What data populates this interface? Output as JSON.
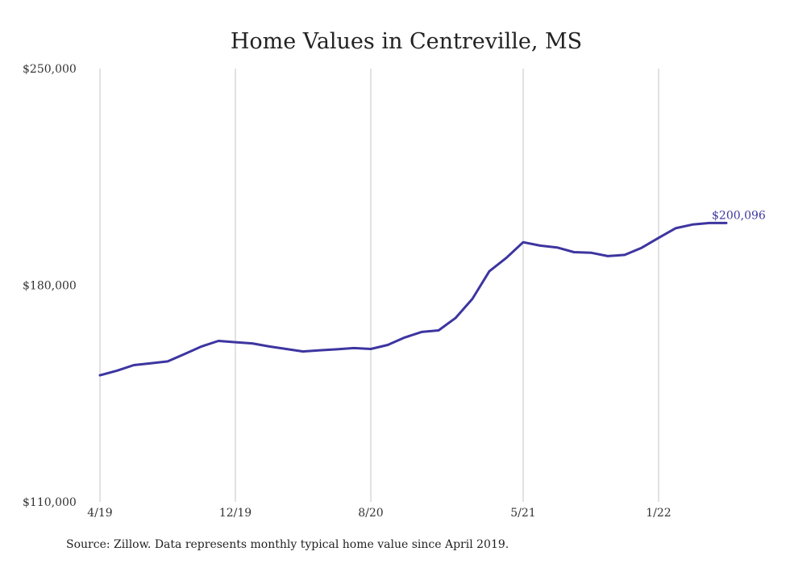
{
  "chart_data": {
    "type": "line",
    "title": "Home Values in Centreville, MS",
    "xlabel": "",
    "ylabel": "",
    "ylim": [
      110000,
      250000
    ],
    "y_ticks": [
      "$250,000",
      "$180,000",
      "$110,000"
    ],
    "y_tick_values": [
      250000,
      180000,
      110000
    ],
    "x_ticks": [
      "4/19",
      "12/19",
      "8/20",
      "5/21",
      "1/22"
    ],
    "x_tick_dates": [
      "2019-04",
      "2019-12",
      "2020-08",
      "2021-05",
      "2022-01"
    ],
    "grid": "vertical",
    "line_color": "#3d35a0",
    "end_label": "$200,096",
    "series": [
      {
        "x": [
          "2019-04",
          "2019-05",
          "2019-06",
          "2019-07",
          "2019-08",
          "2019-09",
          "2019-10",
          "2019-11",
          "2019-12",
          "2020-01",
          "2020-02",
          "2020-03",
          "2020-04",
          "2020-05",
          "2020-06",
          "2020-07",
          "2020-08",
          "2020-09",
          "2020-10",
          "2020-11",
          "2020-12",
          "2021-01",
          "2021-02",
          "2021-03",
          "2021-04",
          "2021-05",
          "2021-06",
          "2021-07",
          "2021-08",
          "2021-09",
          "2021-10",
          "2021-11",
          "2021-12",
          "2022-01",
          "2022-02",
          "2022-03",
          "2022-04",
          "2022-05"
        ],
        "values": [
          150900,
          152400,
          154200,
          154800,
          155400,
          157800,
          160200,
          162000,
          161600,
          161200,
          160200,
          159400,
          158600,
          159000,
          159300,
          159700,
          159400,
          160700,
          163100,
          164900,
          165400,
          169400,
          175600,
          184500,
          188800,
          193900,
          192800,
          192200,
          190700,
          190500,
          189400,
          189800,
          192100,
          195300,
          198400,
          199600,
          200096,
          200096
        ]
      }
    ]
  },
  "footer": {
    "source": "Source: Zillow. Data represents monthly typical home value since April 2019."
  }
}
